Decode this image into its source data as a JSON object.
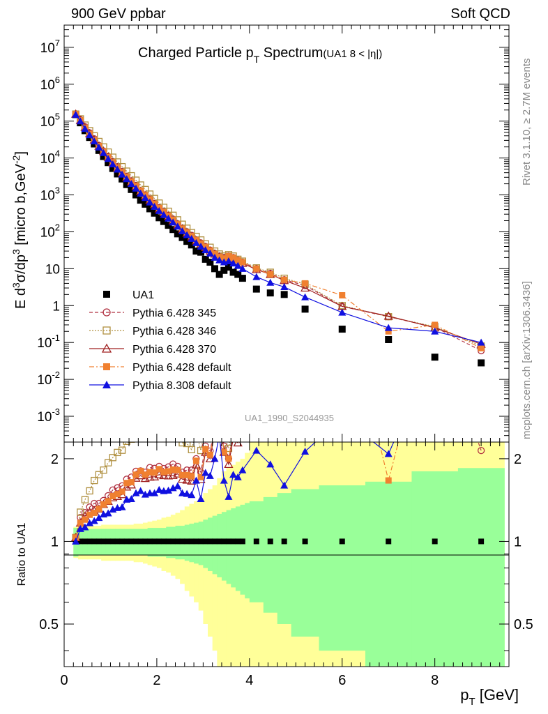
{
  "header": {
    "left": "900 GeV ppbar",
    "right": "Soft QCD"
  },
  "side_text": {
    "rivet": "Rivet 3.1.10, ≥ 2.7M events",
    "mcplots": "mcplots.cern.ch [arXiv:1306.3436]"
  },
  "chart_data": [
    {
      "type": "scatter",
      "panel": "main",
      "title": "Charged Particle pT Spectrum",
      "title_parts": {
        "main": "Charged Particle p",
        "sub": "T",
        "after": " Spectrum",
        "extra": "(UA1   8 < |η|)"
      },
      "watermark": "UA1_1990_S2044935",
      "xlabel": "pT [GeV]",
      "ylabel": "E d3σ/dp3 [micro b,GeV-2]",
      "y_scale": "log",
      "xlim": [
        0,
        9.6
      ],
      "ylim": [
        0.0002,
        40000000
      ],
      "y_ticks": [
        "10^7",
        "10^6",
        "10^5",
        "10^4",
        "10^3",
        "10^2",
        "10",
        "1",
        "10^-1",
        "10^-2",
        "10^-3"
      ],
      "legend_position": "bottom-left",
      "series": [
        {
          "name": "UA1",
          "color": "#000000",
          "marker": "square-filled",
          "line": "none",
          "x": [
            0.25,
            0.35,
            0.45,
            0.55,
            0.65,
            0.75,
            0.85,
            0.95,
            1.05,
            1.15,
            1.25,
            1.35,
            1.45,
            1.55,
            1.65,
            1.75,
            1.85,
            1.95,
            2.05,
            2.15,
            2.25,
            2.35,
            2.45,
            2.55,
            2.65,
            2.75,
            2.85,
            2.95,
            3.05,
            3.15,
            3.25,
            3.35,
            3.45,
            3.55,
            3.65,
            3.75,
            3.85,
            4.15,
            4.45,
            4.75,
            5.2,
            6.0,
            7.0,
            8.0,
            9.0
          ],
          "y": [
            150000,
            90000,
            55000,
            36000,
            24000,
            16000,
            11000,
            7500,
            5200,
            3700,
            2700,
            1900,
            1400,
            1000,
            720,
            560,
            420,
            320,
            240,
            190,
            150,
            115,
            88,
            70,
            55,
            44,
            30,
            28,
            18,
            15,
            10,
            7,
            9,
            11,
            8,
            7,
            5.5,
            2.8,
            2.2,
            2.0,
            0.8,
            0.23,
            0.12,
            0.04,
            0.028
          ]
        },
        {
          "name": "Pythia 6.428 345",
          "color": "#b03040",
          "marker": "circle-open",
          "line": "dashed",
          "x": [
            0.25,
            0.35,
            0.45,
            0.55,
            0.65,
            0.75,
            0.85,
            0.95,
            1.05,
            1.15,
            1.25,
            1.35,
            1.45,
            1.55,
            1.65,
            1.75,
            1.85,
            1.95,
            2.05,
            2.15,
            2.25,
            2.35,
            2.45,
            2.55,
            2.65,
            2.75,
            2.85,
            2.95,
            3.05,
            3.15,
            3.25,
            3.35,
            3.45,
            3.55,
            3.65,
            3.75,
            3.85,
            4.15,
            4.45,
            4.75,
            5.2,
            6.0,
            7.0,
            8.0,
            9.0
          ],
          "y": [
            155000,
            110000,
            70000,
            48000,
            33000,
            22000,
            15500,
            11000,
            8000,
            5800,
            4300,
            3200,
            2400,
            1800,
            1300,
            1000,
            780,
            590,
            450,
            350,
            280,
            220,
            165,
            125,
            100,
            80,
            60,
            50,
            40,
            32,
            26,
            22,
            20,
            22,
            20,
            17,
            15,
            10,
            7.5,
            5,
            3.5,
            0.95,
            0.5,
            0.26,
            0.06
          ]
        },
        {
          "name": "Pythia 6.428 346",
          "color": "#b09040",
          "marker": "square-open",
          "line": "dotted",
          "x": [
            0.25,
            0.35,
            0.45,
            0.55,
            0.65,
            0.75,
            0.85,
            0.95,
            1.05,
            1.15,
            1.25,
            1.35,
            1.45,
            1.55,
            1.65,
            1.75,
            1.85,
            1.95,
            2.05,
            2.15,
            2.25,
            2.35,
            2.45,
            2.55,
            2.65,
            2.75,
            2.85,
            2.95,
            3.05,
            3.15,
            3.25,
            3.35,
            3.45,
            3.55,
            3.65,
            3.75,
            3.85,
            4.15,
            4.45,
            4.75,
            5.2,
            6.0,
            7.0,
            8.0,
            9.0
          ],
          "y": [
            155000,
            115000,
            78000,
            55000,
            40000,
            28000,
            20000,
            14500,
            10500,
            7800,
            5800,
            4400,
            3300,
            2500,
            1850,
            1400,
            1050,
            800,
            600,
            460,
            360,
            280,
            210,
            160,
            125,
            95,
            75,
            60,
            47,
            38,
            30,
            25,
            22,
            24,
            22,
            18,
            16,
            10.5,
            8,
            5.5,
            3.8,
            1.0,
            0.5,
            0.27,
            0.08
          ]
        },
        {
          "name": "Pythia 6.428 370",
          "color": "#a02020",
          "marker": "triangle-open",
          "line": "solid",
          "x": [
            0.25,
            0.35,
            0.45,
            0.55,
            0.65,
            0.75,
            0.85,
            0.95,
            1.05,
            1.15,
            1.25,
            1.35,
            1.45,
            1.55,
            1.65,
            1.75,
            1.85,
            1.95,
            2.05,
            2.15,
            2.25,
            2.35,
            2.45,
            2.55,
            2.65,
            2.75,
            2.85,
            2.95,
            3.05,
            3.15,
            3.25,
            3.35,
            3.45,
            3.55,
            3.65,
            3.75,
            3.85,
            4.15,
            4.45,
            4.75,
            5.2,
            6.0,
            7.0,
            8.0,
            9.0
          ],
          "y": [
            155000,
            105000,
            68000,
            46000,
            31000,
            21000,
            15000,
            10500,
            7500,
            5400,
            4000,
            3000,
            2250,
            1700,
            1250,
            950,
            720,
            550,
            420,
            330,
            260,
            200,
            155,
            118,
            92,
            73,
            57,
            47,
            38,
            30,
            25,
            21,
            19,
            21,
            19,
            16,
            14,
            9.5,
            7,
            4.8,
            3.0,
            0.95,
            0.52,
            0.25,
            0.09
          ]
        },
        {
          "name": "Pythia 6.428 default",
          "color": "#f08030",
          "marker": "square-filled",
          "line": "dashdot",
          "x": [
            0.25,
            0.35,
            0.45,
            0.55,
            0.65,
            0.75,
            0.85,
            0.95,
            1.05,
            1.15,
            1.25,
            1.35,
            1.45,
            1.55,
            1.65,
            1.75,
            1.85,
            1.95,
            2.05,
            2.15,
            2.25,
            2.35,
            2.45,
            2.55,
            2.65,
            2.75,
            2.85,
            2.95,
            3.05,
            3.15,
            3.25,
            3.35,
            3.45,
            3.55,
            3.65,
            3.75,
            3.85,
            4.15,
            4.45,
            4.75,
            5.2,
            6.0,
            7.0,
            8.0,
            9.0
          ],
          "y": [
            155000,
            105000,
            66000,
            45000,
            30500,
            21000,
            15000,
            10500,
            7600,
            5500,
            4100,
            3100,
            2300,
            1750,
            1300,
            980,
            750,
            570,
            440,
            340,
            270,
            210,
            160,
            122,
            96,
            76,
            59,
            48,
            39,
            31,
            25,
            21,
            19,
            22,
            20,
            17,
            15,
            10,
            7,
            5,
            4.0,
            1.9,
            0.2,
            0.3,
            0.07
          ]
        },
        {
          "name": "Pythia 8.308 default",
          "color": "#1010e0",
          "marker": "triangle-filled",
          "line": "solid",
          "x": [
            0.25,
            0.35,
            0.45,
            0.55,
            0.65,
            0.75,
            0.85,
            0.95,
            1.05,
            1.15,
            1.25,
            1.35,
            1.45,
            1.55,
            1.65,
            1.75,
            1.85,
            1.95,
            2.05,
            2.15,
            2.25,
            2.35,
            2.45,
            2.55,
            2.65,
            2.75,
            2.85,
            2.95,
            3.05,
            3.15,
            3.25,
            3.35,
            3.45,
            3.55,
            3.65,
            3.75,
            3.85,
            4.15,
            4.45,
            4.75,
            5.2,
            6.0,
            7.0,
            8.0,
            9.0
          ],
          "y": [
            150000,
            100000,
            62000,
            42000,
            28500,
            19500,
            13800,
            9500,
            6800,
            4900,
            3600,
            2700,
            2000,
            1500,
            1100,
            830,
            630,
            480,
            370,
            290,
            230,
            180,
            140,
            105,
            82,
            65,
            50,
            40,
            32,
            26,
            20,
            17,
            15,
            16,
            14,
            12,
            10,
            6,
            4.2,
            3.2,
            1.7,
            0.65,
            0.25,
            0.2,
            0.1
          ]
        }
      ]
    },
    {
      "type": "scatter",
      "panel": "ratio",
      "xlabel": "pT [GeV]",
      "ylabel": "Ratio to UA1",
      "y_scale": "log",
      "xlim": [
        0,
        9.6
      ],
      "ylim": [
        0.35,
        2.3
      ],
      "x_ticks": [
        "0",
        "2",
        "4",
        "6",
        "8"
      ],
      "y_ticks": [
        "0.5",
        "1",
        "2"
      ],
      "reference_line": 1,
      "bands": {
        "edges": [
          0.2,
          0.3,
          0.4,
          0.5,
          0.6,
          0.7,
          0.8,
          0.9,
          1.0,
          1.1,
          1.2,
          1.3,
          1.4,
          1.5,
          1.6,
          1.7,
          1.8,
          1.9,
          2.0,
          2.1,
          2.2,
          2.3,
          2.4,
          2.5,
          2.6,
          2.7,
          2.8,
          2.9,
          3.0,
          3.1,
          3.2,
          3.3,
          3.4,
          3.5,
          3.6,
          3.7,
          3.8,
          3.9,
          4.0,
          4.3,
          4.6,
          4.9,
          5.5,
          6.5,
          7.5,
          8.5,
          9.5
        ],
        "green_half": [
          0.12,
          0.11,
          0.11,
          0.11,
          0.11,
          0.11,
          0.11,
          0.11,
          0.11,
          0.11,
          0.11,
          0.11,
          0.11,
          0.11,
          0.11,
          0.11,
          0.12,
          0.12,
          0.12,
          0.12,
          0.13,
          0.13,
          0.14,
          0.14,
          0.15,
          0.16,
          0.17,
          0.18,
          0.2,
          0.22,
          0.24,
          0.26,
          0.28,
          0.3,
          0.32,
          0.34,
          0.36,
          0.38,
          0.4,
          0.45,
          0.5,
          0.55,
          0.6,
          0.65,
          0.8,
          0.85
        ],
        "yellow_half": [
          0.13,
          0.14,
          0.14,
          0.14,
          0.14,
          0.14,
          0.15,
          0.15,
          0.15,
          0.15,
          0.15,
          0.15,
          0.15,
          0.16,
          0.16,
          0.17,
          0.18,
          0.19,
          0.2,
          0.22,
          0.23,
          0.25,
          0.27,
          0.3,
          0.34,
          0.37,
          0.4,
          0.44,
          0.5,
          0.55,
          0.6,
          0.7,
          0.8,
          0.85,
          0.9,
          0.95,
          1.0,
          1.1,
          1.3,
          1.5,
          1.7,
          1.9,
          2.2,
          2.5,
          3.0,
          3.0
        ]
      }
    }
  ]
}
